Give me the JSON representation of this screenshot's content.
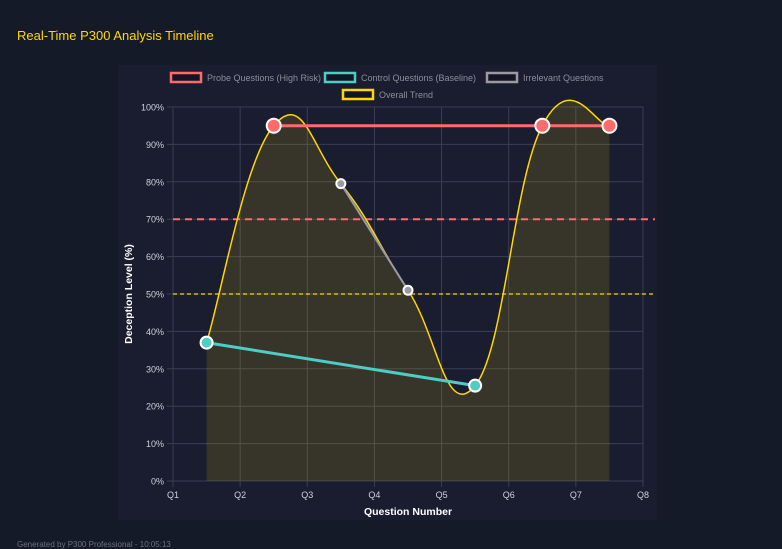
{
  "title": "Real-Time P300 Analysis Timeline",
  "footer": "Generated by P300 Professional - 10:05:13",
  "chart_data": {
    "type": "line",
    "xlabel": "Question Number",
    "ylabel": "Deception Level (%)",
    "x_ticks": [
      "Q1",
      "Q2",
      "Q3",
      "Q4",
      "Q5",
      "Q6",
      "Q7",
      "Q8"
    ],
    "xlim": [
      1,
      8
    ],
    "ylim": [
      0,
      100
    ],
    "y_ticks": [
      "0%",
      "10%",
      "20%",
      "30%",
      "40%",
      "50%",
      "60%",
      "70%",
      "80%",
      "90%",
      "100%"
    ],
    "grid": true,
    "legend": "top",
    "series": [
      {
        "name": "Probe Questions (High Risk)",
        "color": "#ff6b6b",
        "x": [
          2.5,
          6.5,
          7.5
        ],
        "y": [
          95,
          95,
          95
        ]
      },
      {
        "name": "Control Questions (Baseline)",
        "color": "#4ecdc4",
        "x": [
          1.5,
          5.5
        ],
        "y": [
          37,
          25.5
        ]
      },
      {
        "name": "Irrelevant Questions",
        "color": "#9a9aa4",
        "x": [
          3.5,
          4.5
        ],
        "y": [
          79.5,
          51
        ]
      },
      {
        "name": "Overall Trend",
        "color": "#ffd700",
        "x": [
          1.5,
          2.5,
          3.5,
          4.5,
          5.5,
          6.5,
          7.5
        ],
        "y": [
          37,
          95,
          79.5,
          51,
          25.5,
          95,
          95
        ],
        "filled": true,
        "smooth": true
      }
    ],
    "thresholds": [
      {
        "value": 70,
        "color": "#ff6b6b"
      },
      {
        "value": 50,
        "color": "#ffd700"
      }
    ]
  }
}
